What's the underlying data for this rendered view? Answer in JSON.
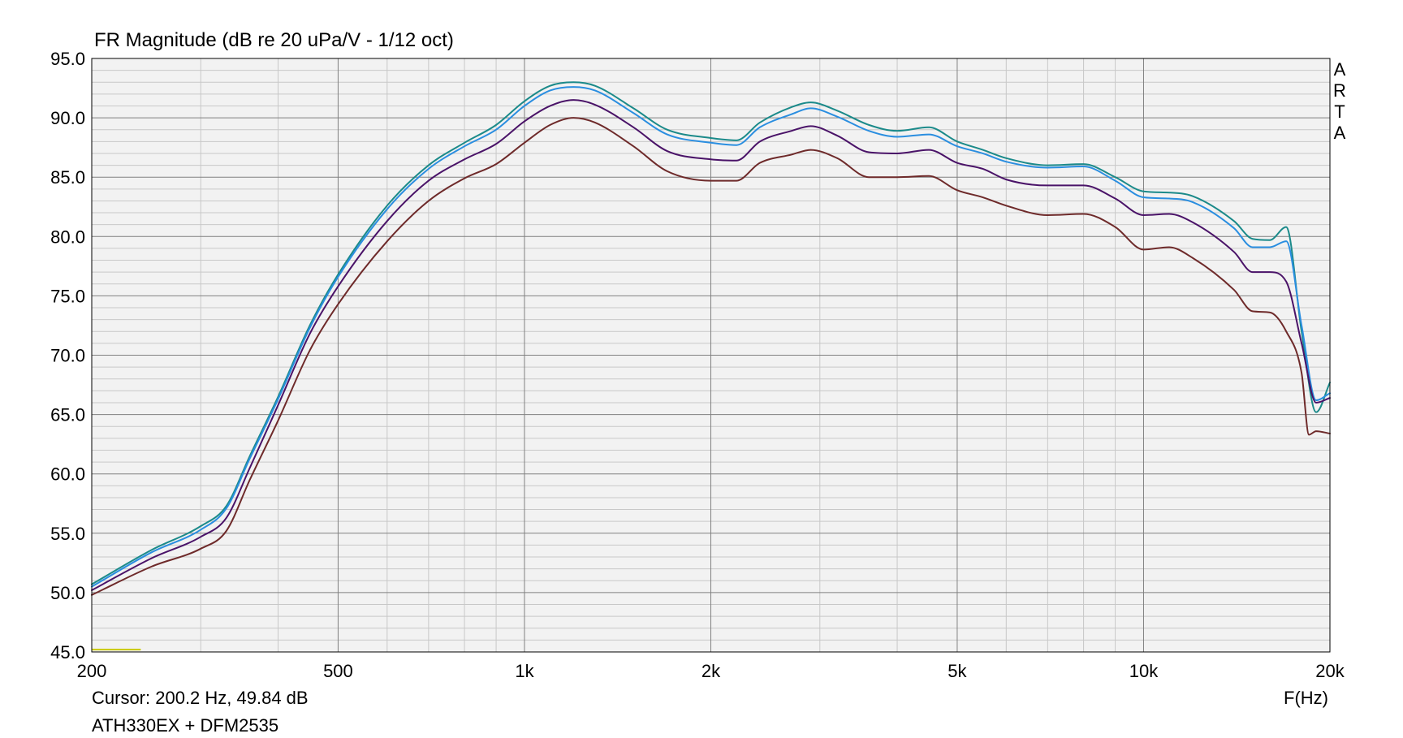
{
  "chart_data": {
    "type": "line",
    "title": "FR Magnitude (dB re 20 uPa/V - 1/12 oct)",
    "xlabel": "F(Hz)",
    "ylabel": "",
    "x_scale": "log",
    "xlim": [
      200,
      20000
    ],
    "ylim": [
      45.0,
      95.0
    ],
    "x_ticks": [
      200,
      500,
      1000,
      2000,
      5000,
      10000,
      20000
    ],
    "x_tick_labels": [
      "200",
      "500",
      "1k",
      "2k",
      "5k",
      "10k",
      "20k"
    ],
    "y_ticks": [
      45,
      50,
      55,
      60,
      65,
      70,
      75,
      80,
      85,
      90,
      95
    ],
    "y_tick_labels": [
      "45.0",
      "50.0",
      "55.0",
      "60.0",
      "65.0",
      "70.0",
      "75.0",
      "80.0",
      "85.0",
      "90.0",
      "95.0"
    ],
    "grid": true,
    "cursor_text": "Cursor: 200.2 Hz, 49.84 dB",
    "description_text": "ATH330EX + DFM2535",
    "brand_letters": [
      "A",
      "R",
      "T",
      "A"
    ],
    "cursor_marker": {
      "x": [
        200,
        240
      ],
      "y": 45.2,
      "color": "#c8c800"
    },
    "series": [
      {
        "color": "#1b8a8a",
        "points": [
          [
            200,
            50.7
          ],
          [
            250,
            53.6
          ],
          [
            300,
            55.6
          ],
          [
            330,
            57.3
          ],
          [
            360,
            61.5
          ],
          [
            400,
            66.5
          ],
          [
            450,
            72.5
          ],
          [
            500,
            76.8
          ],
          [
            600,
            82.6
          ],
          [
            700,
            86.0
          ],
          [
            800,
            87.9
          ],
          [
            900,
            89.4
          ],
          [
            1000,
            91.4
          ],
          [
            1100,
            92.7
          ],
          [
            1200,
            93.0
          ],
          [
            1300,
            92.7
          ],
          [
            1500,
            90.8
          ],
          [
            1700,
            89.0
          ],
          [
            2000,
            88.3
          ],
          [
            2200,
            88.1
          ],
          [
            2400,
            89.6
          ],
          [
            2700,
            90.9
          ],
          [
            2900,
            91.3
          ],
          [
            3200,
            90.6
          ],
          [
            3600,
            89.4
          ],
          [
            4000,
            88.9
          ],
          [
            4500,
            89.2
          ],
          [
            5000,
            88.0
          ],
          [
            5500,
            87.3
          ],
          [
            6000,
            86.6
          ],
          [
            7000,
            86.0
          ],
          [
            8000,
            86.1
          ],
          [
            9000,
            85.0
          ],
          [
            10000,
            83.8
          ],
          [
            11000,
            83.7
          ],
          [
            12000,
            83.4
          ],
          [
            14000,
            81.3
          ],
          [
            15000,
            79.8
          ],
          [
            16000,
            79.7
          ],
          [
            17000,
            80.8
          ],
          [
            18000,
            72.0
          ],
          [
            19000,
            65.2
          ],
          [
            20000,
            67.7
          ]
        ]
      },
      {
        "color": "#2a8ee0",
        "points": [
          [
            200,
            50.5
          ],
          [
            250,
            53.4
          ],
          [
            300,
            55.3
          ],
          [
            330,
            57.1
          ],
          [
            360,
            61.3
          ],
          [
            400,
            66.3
          ],
          [
            450,
            72.3
          ],
          [
            500,
            76.6
          ],
          [
            600,
            82.3
          ],
          [
            700,
            85.7
          ],
          [
            800,
            87.6
          ],
          [
            900,
            89.0
          ],
          [
            1000,
            91.0
          ],
          [
            1100,
            92.3
          ],
          [
            1200,
            92.6
          ],
          [
            1300,
            92.3
          ],
          [
            1500,
            90.4
          ],
          [
            1700,
            88.6
          ],
          [
            2000,
            87.9
          ],
          [
            2200,
            87.7
          ],
          [
            2400,
            89.2
          ],
          [
            2700,
            90.3
          ],
          [
            2900,
            90.8
          ],
          [
            3200,
            90.1
          ],
          [
            3600,
            88.9
          ],
          [
            4000,
            88.4
          ],
          [
            4500,
            88.6
          ],
          [
            5000,
            87.6
          ],
          [
            5500,
            87.0
          ],
          [
            6000,
            86.3
          ],
          [
            7000,
            85.8
          ],
          [
            8000,
            85.9
          ],
          [
            9000,
            84.7
          ],
          [
            10000,
            83.3
          ],
          [
            11000,
            83.2
          ],
          [
            12000,
            82.9
          ],
          [
            14000,
            80.7
          ],
          [
            15000,
            79.1
          ],
          [
            16000,
            79.1
          ],
          [
            17000,
            79.6
          ],
          [
            18000,
            72.5
          ],
          [
            19000,
            66.2
          ],
          [
            20000,
            66.8
          ]
        ]
      },
      {
        "color": "#4a1368",
        "points": [
          [
            200,
            50.2
          ],
          [
            250,
            52.9
          ],
          [
            300,
            54.7
          ],
          [
            330,
            56.3
          ],
          [
            360,
            60.5
          ],
          [
            400,
            65.8
          ],
          [
            450,
            71.8
          ],
          [
            500,
            75.8
          ],
          [
            600,
            81.3
          ],
          [
            700,
            84.7
          ],
          [
            800,
            86.5
          ],
          [
            900,
            87.8
          ],
          [
            1000,
            89.7
          ],
          [
            1100,
            91.0
          ],
          [
            1200,
            91.5
          ],
          [
            1300,
            91.1
          ],
          [
            1500,
            89.2
          ],
          [
            1700,
            87.2
          ],
          [
            2000,
            86.5
          ],
          [
            2200,
            86.4
          ],
          [
            2400,
            88.0
          ],
          [
            2700,
            88.9
          ],
          [
            2900,
            89.3
          ],
          [
            3200,
            88.5
          ],
          [
            3600,
            87.1
          ],
          [
            4000,
            87.0
          ],
          [
            4500,
            87.3
          ],
          [
            5000,
            86.2
          ],
          [
            5500,
            85.7
          ],
          [
            6000,
            84.8
          ],
          [
            7000,
            84.3
          ],
          [
            8000,
            84.3
          ],
          [
            9000,
            83.2
          ],
          [
            10000,
            81.8
          ],
          [
            11000,
            81.9
          ],
          [
            12000,
            81.2
          ],
          [
            14000,
            78.7
          ],
          [
            15000,
            77.0
          ],
          [
            16000,
            77.0
          ],
          [
            17000,
            76.2
          ],
          [
            18000,
            71.0
          ],
          [
            19000,
            66.0
          ],
          [
            20000,
            66.4
          ]
        ]
      },
      {
        "color": "#6e2a2a",
        "points": [
          [
            200,
            49.8
          ],
          [
            250,
            52.2
          ],
          [
            300,
            53.7
          ],
          [
            330,
            55.2
          ],
          [
            360,
            59.5
          ],
          [
            400,
            64.5
          ],
          [
            450,
            70.4
          ],
          [
            500,
            74.3
          ],
          [
            600,
            79.6
          ],
          [
            700,
            83.0
          ],
          [
            800,
            84.9
          ],
          [
            900,
            86.1
          ],
          [
            1000,
            87.9
          ],
          [
            1100,
            89.4
          ],
          [
            1200,
            90.0
          ],
          [
            1300,
            89.6
          ],
          [
            1500,
            87.6
          ],
          [
            1700,
            85.5
          ],
          [
            2000,
            84.7
          ],
          [
            2200,
            84.7
          ],
          [
            2400,
            86.2
          ],
          [
            2700,
            86.9
          ],
          [
            2900,
            87.3
          ],
          [
            3200,
            86.6
          ],
          [
            3600,
            85.0
          ],
          [
            4000,
            85.0
          ],
          [
            4500,
            85.1
          ],
          [
            5000,
            83.9
          ],
          [
            5500,
            83.3
          ],
          [
            6000,
            82.6
          ],
          [
            7000,
            81.8
          ],
          [
            8000,
            81.9
          ],
          [
            9000,
            80.8
          ],
          [
            10000,
            78.9
          ],
          [
            11000,
            79.1
          ],
          [
            12000,
            78.2
          ],
          [
            14000,
            75.5
          ],
          [
            15000,
            73.7
          ],
          [
            16000,
            73.6
          ],
          [
            17000,
            72.0
          ],
          [
            18000,
            68.5
          ],
          [
            18500,
            63.3
          ],
          [
            19000,
            63.6
          ],
          [
            20000,
            63.4
          ]
        ]
      }
    ]
  }
}
